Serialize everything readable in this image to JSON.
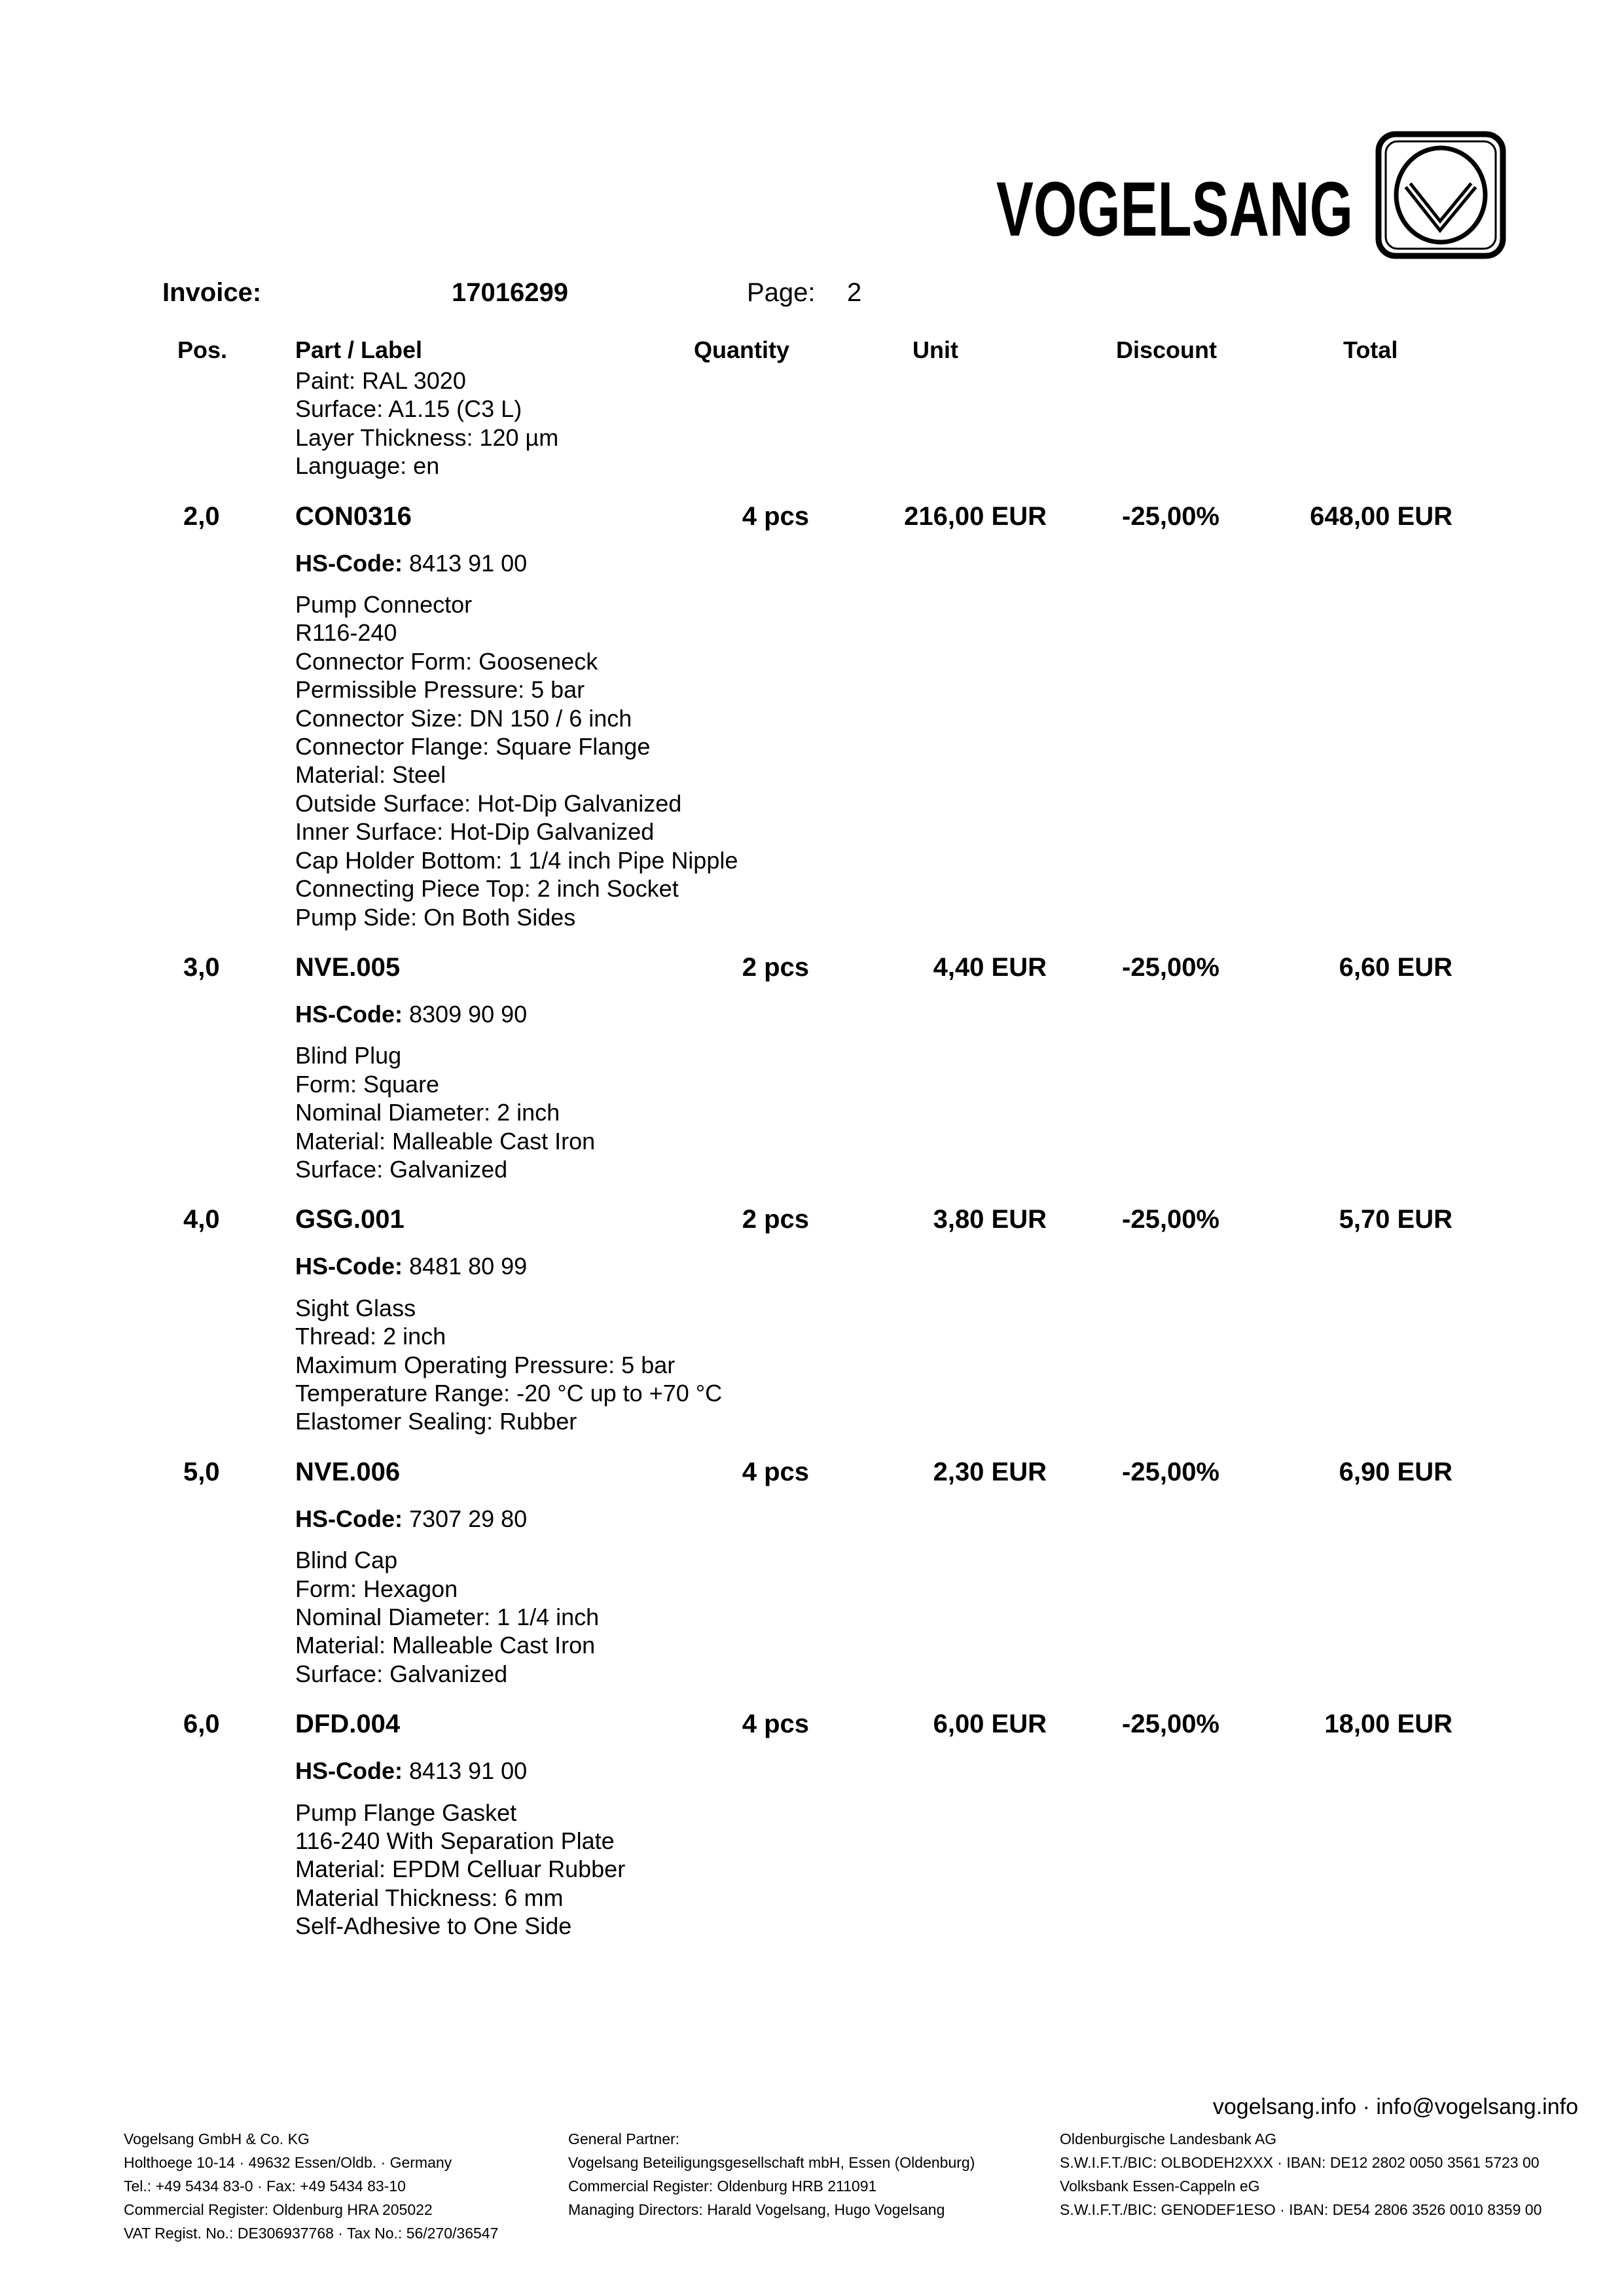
{
  "logo": {
    "text": "VOGELSANG",
    "emblem": "v-check-emblem"
  },
  "header": {
    "invoice_label": "Invoice:",
    "invoice_number": "17016299",
    "page_label": "Page:",
    "page_number": "2"
  },
  "columns": {
    "pos": "Pos.",
    "part": "Part / Label",
    "quantity": "Quantity",
    "unit": "Unit",
    "discount": "Discount",
    "total": "Total"
  },
  "continued_lines": [
    "Paint: RAL 3020",
    "Surface: A1.15 (C3 L)",
    "Layer Thickness: 120 µm",
    "Language: en"
  ],
  "hs_label": "HS-Code:",
  "items": [
    {
      "pos": "2,0",
      "part": "CON0316",
      "qty": "4 pcs",
      "unit": "216,00 EUR",
      "discount": "-25,00%",
      "total": "648,00 EUR",
      "hs": "8413 91 00",
      "desc": [
        "Pump Connector",
        "R116-240",
        "Connector Form: Gooseneck",
        "Permissible Pressure: 5 bar",
        "Connector Size: DN 150 / 6 inch",
        "Connector Flange: Square Flange",
        "Material: Steel",
        "Outside Surface: Hot-Dip Galvanized",
        "Inner Surface: Hot-Dip Galvanized",
        "Cap Holder Bottom: 1 1/4 inch Pipe Nipple",
        "Connecting Piece Top: 2 inch Socket",
        "Pump Side: On Both Sides"
      ]
    },
    {
      "pos": "3,0",
      "part": "NVE.005",
      "qty": "2 pcs",
      "unit": "4,40 EUR",
      "discount": "-25,00%",
      "total": "6,60 EUR",
      "hs": "8309 90 90",
      "desc": [
        "Blind Plug",
        "Form: Square",
        "Nominal Diameter: 2 inch",
        "Material: Malleable Cast Iron",
        "Surface: Galvanized"
      ]
    },
    {
      "pos": "4,0",
      "part": "GSG.001",
      "qty": "2 pcs",
      "unit": "3,80 EUR",
      "discount": "-25,00%",
      "total": "5,70 EUR",
      "hs": "8481 80 99",
      "desc": [
        "Sight Glass",
        "Thread: 2 inch",
        "Maximum Operating Pressure: 5 bar",
        "Temperature Range: -20 °C up to +70 °C",
        "Elastomer Sealing: Rubber"
      ]
    },
    {
      "pos": "5,0",
      "part": "NVE.006",
      "qty": "4 pcs",
      "unit": "2,30 EUR",
      "discount": "-25,00%",
      "total": "6,90 EUR",
      "hs": "7307 29 80",
      "desc": [
        "Blind Cap",
        "Form: Hexagon",
        "Nominal Diameter: 1 1/4 inch",
        "Material: Malleable Cast Iron",
        "Surface: Galvanized"
      ]
    },
    {
      "pos": "6,0",
      "part": "DFD.004",
      "qty": "4 pcs",
      "unit": "6,00 EUR",
      "discount": "-25,00%",
      "total": "18,00 EUR",
      "hs": "8413 91 00",
      "desc": [
        "Pump Flange Gasket",
        "116-240 With Separation Plate",
        "Material: EPDM Celluar Rubber",
        "Material Thickness: 6 mm",
        "Self-Adhesive to One Side"
      ]
    }
  ],
  "footer": {
    "web": "vogelsang.info · info@vogelsang.info",
    "col1": [
      "Vogelsang GmbH & Co. KG",
      "Holthoege 10-14 · 49632 Essen/Oldb. · Germany",
      "Tel.: +49 5434 83-0 · Fax: +49 5434 83-10",
      "Commercial Register: Oldenburg HRA 205022",
      "VAT Regist. No.: DE306937768  · Tax No.: 56/270/36547"
    ],
    "col2": [
      "General Partner:",
      "Vogelsang Beteiligungsgesellschaft mbH, Essen (Oldenburg)",
      "Commercial Register: Oldenburg HRB 211091",
      "Managing Directors: Harald Vogelsang, Hugo Vogelsang"
    ],
    "col3": [
      "Oldenburgische Landesbank AG",
      "S.W.I.F.T./BIC: OLBODEH2XXX · IBAN: DE12 2802 0050 3561 5723 00",
      "Volksbank Essen-Cappeln eG",
      "S.W.I.F.T./BIC: GENODEF1ESO · IBAN: DE54 2806 3526 0010 8359 00"
    ]
  }
}
